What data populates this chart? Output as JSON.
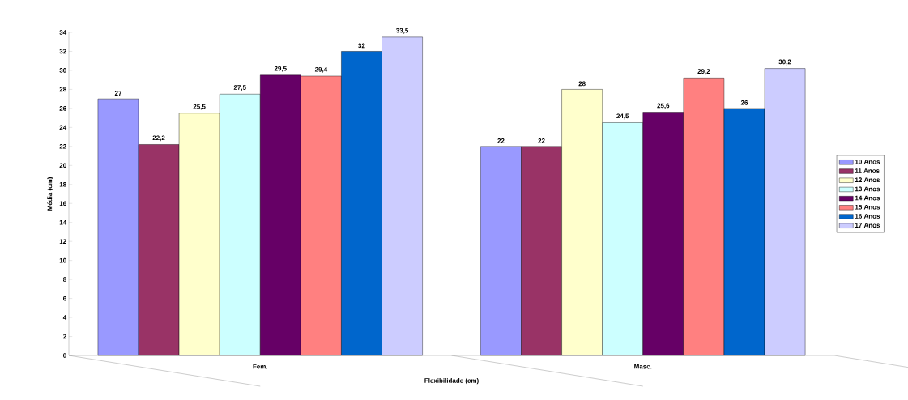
{
  "chart_data": {
    "type": "bar",
    "xlabel": "Flexibilidade (cm)",
    "ylabel": "Média (cm)",
    "categories": [
      "Fem.",
      "Masc."
    ],
    "ylim": [
      0,
      34
    ],
    "yticks": [
      0,
      2,
      4,
      6,
      8,
      10,
      12,
      14,
      16,
      18,
      20,
      22,
      24,
      26,
      28,
      30,
      32,
      34
    ],
    "legend": "right",
    "grid": false,
    "series": [
      {
        "name": "10 Anos",
        "color": "#9999ff",
        "values": [
          27,
          22
        ],
        "value_labels": [
          "27",
          "22"
        ]
      },
      {
        "name": "11 Anos",
        "color": "#993366",
        "values": [
          22.2,
          22
        ],
        "value_labels": [
          "22,2",
          "22"
        ]
      },
      {
        "name": "12 Anos",
        "color": "#ffffcc",
        "values": [
          25.5,
          28
        ],
        "value_labels": [
          "25,5",
          "28"
        ]
      },
      {
        "name": "13 Anos",
        "color": "#ccffff",
        "values": [
          27.5,
          24.5
        ],
        "value_labels": [
          "27,5",
          "24,5"
        ]
      },
      {
        "name": "14 Anos",
        "color": "#660066",
        "values": [
          29.5,
          25.6
        ],
        "value_labels": [
          "29,5",
          "25,6"
        ]
      },
      {
        "name": "15 Anos",
        "color": "#ff8080",
        "values": [
          29.4,
          29.2
        ],
        "value_labels": [
          "29,4",
          "29,2"
        ]
      },
      {
        "name": "16 Anos",
        "color": "#0066cc",
        "values": [
          32,
          26
        ],
        "value_labels": [
          "32",
          "26"
        ]
      },
      {
        "name": "17 Anos",
        "color": "#ccccff",
        "values": [
          33.5,
          30.2
        ],
        "value_labels": [
          "33,5",
          "30,2"
        ]
      }
    ]
  }
}
